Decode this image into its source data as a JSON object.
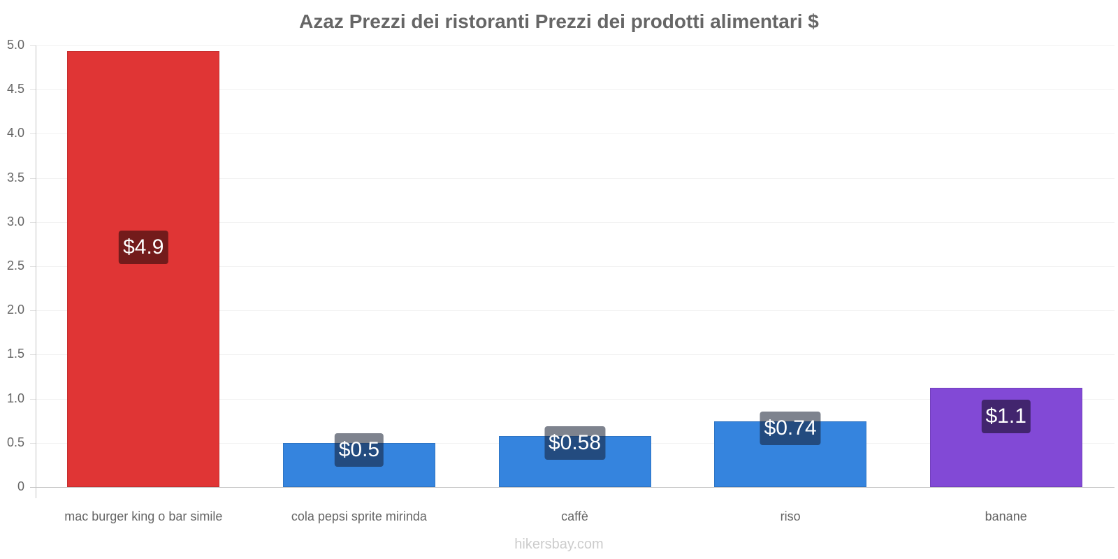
{
  "chart_data": {
    "type": "bar",
    "title": "Azaz Prezzi dei ristoranti Prezzi dei prodotti alimentari $",
    "xlabel": "",
    "ylabel": "",
    "ylim": [
      0,
      5.0
    ],
    "yticks": [
      "0",
      "0.5",
      "1.0",
      "1.5",
      "2.0",
      "2.5",
      "3.0",
      "3.5",
      "4.0",
      "4.5",
      "5.0"
    ],
    "grid": true,
    "legend": null,
    "categories": [
      "mac burger king o bar simile",
      "cola pepsi sprite mirinda",
      "caffè",
      "riso",
      "banane"
    ],
    "values": [
      4.94,
      0.5,
      0.58,
      0.74,
      1.12
    ],
    "data_labels": [
      "$4.9",
      "$0.5",
      "$0.58",
      "$0.74",
      "$1.1"
    ],
    "colors": [
      "#e03535",
      "#3584de",
      "#3584de",
      "#3584de",
      "#8249d6"
    ],
    "label_bg_colors": [
      "#731b1b",
      "#1d4372",
      "#1d4372",
      "#1d4372",
      "#42256e"
    ]
  },
  "footer": {
    "watermark": "hikersbay.com"
  }
}
